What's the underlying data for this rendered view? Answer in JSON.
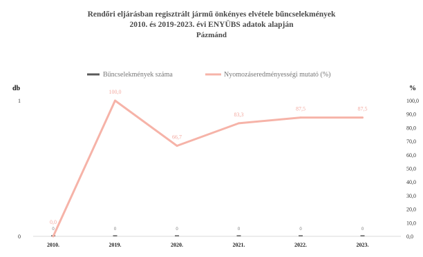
{
  "chart_data": {
    "type": "line",
    "title_lines": [
      "Rendőri eljárásban regisztrált jármű önkényes elvétele bűncselekmények",
      "2010. és 2019-2023. évi ENYÜBS adatok alapján",
      "Pázmánd"
    ],
    "categories": [
      "2010.",
      "2019.",
      "2020.",
      "2021.",
      "2022.",
      "2023."
    ],
    "left_axis": {
      "unit": "db",
      "ticks": [
        "0",
        "1"
      ],
      "ylim": [
        0,
        1
      ]
    },
    "right_axis": {
      "unit": "%",
      "ylim": [
        0,
        100
      ],
      "ticks": [
        "0,0",
        "10,0",
        "20,0",
        "30,0",
        "40,0",
        "50,0",
        "60,0",
        "70,0",
        "80,0",
        "90,0",
        "100,0"
      ]
    },
    "series": [
      {
        "name": "Bűncselekmények száma",
        "axis": "left",
        "kind": "bar",
        "values": [
          0,
          0,
          0,
          0,
          0,
          0
        ],
        "labels": [
          "0",
          "0",
          "0",
          "0",
          "0",
          "0"
        ]
      },
      {
        "name": "Nyomozáseredményességi mutató (%)",
        "axis": "right",
        "kind": "line",
        "values": [
          0,
          100,
          66.7,
          83.3,
          87.5,
          87.5
        ],
        "labels": [
          "0,0",
          "100,0",
          "66,7",
          "83,3",
          "87,5",
          "87,5"
        ]
      }
    ],
    "legend_position": "top-center",
    "grid": false,
    "colors": {
      "line": "#f6b3a8",
      "bar": "#595959",
      "label": "#f3a9a0"
    }
  }
}
